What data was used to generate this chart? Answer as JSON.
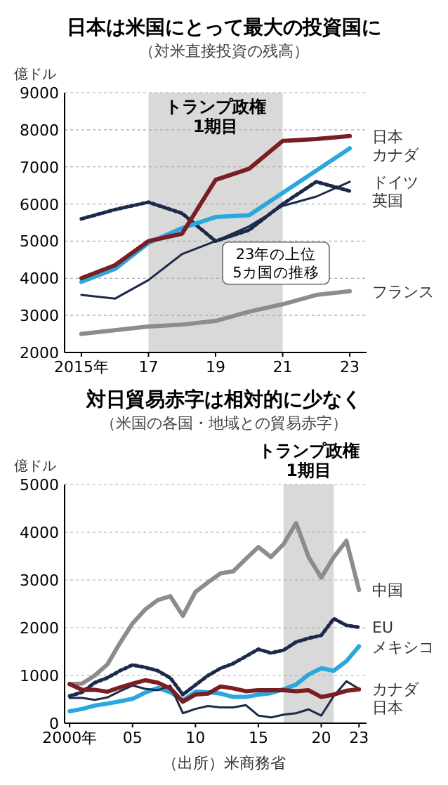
{
  "chart_data": [
    {
      "type": "line",
      "title": "日本は米国にとって最大の投資国に",
      "subtitle": "（対米直接投資の残高）",
      "ylabel": "億ドル",
      "x": [
        2015,
        2016,
        2017,
        2018,
        2019,
        2020,
        2021,
        2022,
        2023
      ],
      "xlim": [
        2014.5,
        2023.5
      ],
      "xticks": [
        {
          "value": 2015,
          "label": "2015年"
        },
        {
          "value": 2017,
          "label": "17"
        },
        {
          "value": 2019,
          "label": "19"
        },
        {
          "value": 2021,
          "label": "21"
        },
        {
          "value": 2023,
          "label": "23"
        }
      ],
      "ylim": [
        2000,
        9000
      ],
      "yticks": [
        2000,
        3000,
        4000,
        5000,
        6000,
        7000,
        8000,
        9000
      ],
      "grid": "y",
      "series": [
        {
          "name": "フランス",
          "color": "#8c8c8c",
          "values": [
            2500,
            2600,
            2700,
            2750,
            2850,
            3100,
            3300,
            3550,
            3650
          ]
        },
        {
          "name": "英国",
          "color": "#1c2a4a",
          "line_style": "dotted",
          "values": [
            5600,
            5850,
            6050,
            5750,
            5000,
            5300,
            6000,
            6600,
            6350
          ]
        },
        {
          "name": "ドイツ",
          "color": "#1c2a4a",
          "values": [
            3550,
            3450,
            3950,
            4650,
            5000,
            5400,
            5950,
            6200,
            6600
          ]
        },
        {
          "name": "カナダ",
          "color": "#2aa7dc",
          "values": [
            3900,
            4250,
            4950,
            5350,
            5650,
            5700,
            6300,
            6900,
            7500
          ]
        },
        {
          "name": "日本",
          "color": "#7b1e24",
          "values": [
            4000,
            4350,
            5000,
            5200,
            6650,
            6950,
            7700,
            7750,
            7830
          ]
        }
      ],
      "bands": [
        {
          "axis": "x",
          "from": 2017,
          "to": 2021,
          "label": "トランプ政権\n1期目",
          "color": "#d9d9d9"
        }
      ],
      "annotations": [
        "23年の上位\n5カ国の推移"
      ]
    },
    {
      "type": "line",
      "title": "対日貿易赤字は相対的に少なく",
      "subtitle": "（米国の各国・地域との貿易赤字）",
      "ylabel": "億ドル",
      "x": [
        2000,
        2001,
        2002,
        2003,
        2004,
        2005,
        2006,
        2007,
        2008,
        2009,
        2010,
        2011,
        2012,
        2013,
        2014,
        2015,
        2016,
        2017,
        2018,
        2019,
        2020,
        2021,
        2022,
        2023
      ],
      "xlim": [
        1999.6,
        2023.6
      ],
      "xticks": [
        {
          "value": 2000,
          "label": "2000年"
        },
        {
          "value": 2005,
          "label": "05"
        },
        {
          "value": 2010,
          "label": "10"
        },
        {
          "value": 2015,
          "label": "15"
        },
        {
          "value": 2020,
          "label": "20"
        },
        {
          "value": 2023,
          "label": "23"
        }
      ],
      "ylim": [
        0,
        5000
      ],
      "yticks": [
        0,
        1000,
        2000,
        3000,
        4000,
        5000
      ],
      "grid": "y",
      "series": [
        {
          "name": "中国",
          "color": "#8c8c8c",
          "values": [
            820,
            830,
            1000,
            1230,
            1680,
            2090,
            2380,
            2580,
            2660,
            2250,
            2750,
            2950,
            3140,
            3180,
            3440,
            3690,
            3480,
            3750,
            4190,
            3480,
            3050,
            3480,
            3820,
            2790
          ]
        },
        {
          "name": "EU",
          "color": "#1c2a4a",
          "line_style": "dotted",
          "values": [
            570,
            650,
            850,
            950,
            1100,
            1220,
            1170,
            1100,
            950,
            600,
            800,
            1000,
            1150,
            1250,
            1400,
            1550,
            1470,
            1530,
            1700,
            1780,
            1840,
            2190,
            2050,
            2010
          ]
        },
        {
          "name": "メキシコ",
          "color": "#2aa7dc",
          "values": [
            250,
            300,
            370,
            410,
            460,
            510,
            640,
            740,
            650,
            480,
            660,
            650,
            620,
            550,
            550,
            600,
            630,
            710,
            810,
            1020,
            1150,
            1100,
            1300,
            1610
          ]
        },
        {
          "name": "カナダ",
          "color": "#1c2a4a",
          "values": [
            530,
            530,
            490,
            540,
            670,
            790,
            720,
            690,
            790,
            210,
            300,
            360,
            330,
            330,
            380,
            160,
            120,
            180,
            210,
            290,
            160,
            570,
            880,
            720
          ]
        },
        {
          "name": "日本",
          "color": "#7b1e24",
          "values": [
            820,
            700,
            700,
            660,
            750,
            830,
            900,
            850,
            730,
            450,
            600,
            620,
            770,
            730,
            670,
            690,
            690,
            690,
            670,
            690,
            550,
            600,
            680,
            710
          ]
        }
      ],
      "bands": [
        {
          "axis": "x",
          "from": 2017,
          "to": 2021,
          "label": "トランプ政権\n1期目",
          "color": "#d9d9d9"
        }
      ],
      "annotations": [
        "（出所）米商務省"
      ]
    }
  ]
}
